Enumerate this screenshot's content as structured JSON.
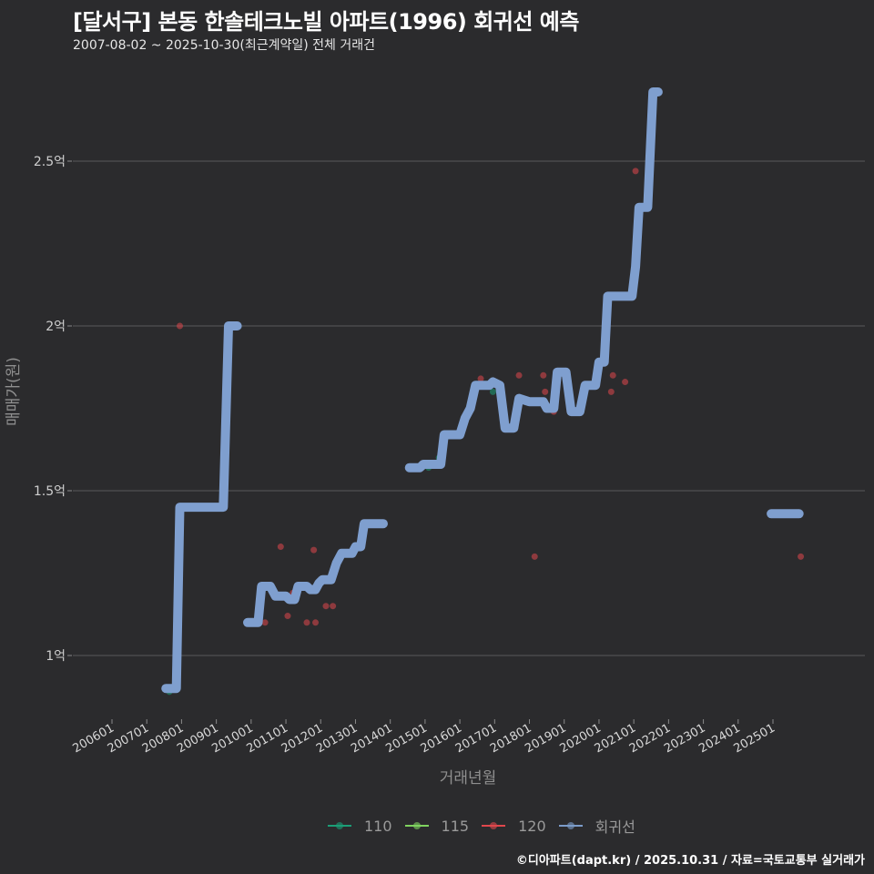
{
  "header": {
    "title": "[달서구] 본동 한솔테크노빌 아파트(1996) 회귀선 예측",
    "subtitle": "2007-08-02 ~ 2025-10-30(최근계약일) 전체 거래건"
  },
  "footer": {
    "credit": "©디아파트(dapt.kr) / 2025.10.31 / 자료=국토교통부 실거래가"
  },
  "legend": {
    "items": [
      {
        "label": "110",
        "color": "#1b9e77"
      },
      {
        "label": "115",
        "color": "#7fd35f"
      },
      {
        "label": "120",
        "color": "#e0474c"
      },
      {
        "label": "회귀선",
        "color": "#7b9cc9"
      }
    ]
  },
  "colors": {
    "background": "#2b2b2d",
    "grid": "#5a5a5a",
    "regression": "#7f9fcf"
  },
  "chart_data": {
    "type": "scatter",
    "title": "[달서구] 본동 한솔테크노빌 아파트(1996) 회귀선 예측",
    "subtitle": "2007-08-02 ~ 2025-10-30(최근계약일) 전체 거래건",
    "xlabel": "거래년월",
    "ylabel": "매매가(원)",
    "x_ticks": [
      "200601",
      "200701",
      "200801",
      "200901",
      "201001",
      "201101",
      "201201",
      "201301",
      "201401",
      "201501",
      "201601",
      "201701",
      "201801",
      "201901",
      "202001",
      "202101",
      "202201",
      "202301",
      "202401",
      "202501"
    ],
    "y_ticks": [
      {
        "value": 100000000,
        "label": "1억"
      },
      {
        "value": 150000000,
        "label": "1.5억"
      },
      {
        "value": 200000000,
        "label": "2억"
      },
      {
        "value": 250000000,
        "label": "2.5억"
      }
    ],
    "ylim": [
      82000000,
      275000000
    ],
    "xlim": [
      2005.6,
      2026.6
    ],
    "grid": true,
    "legend_position": "bottom",
    "series": [
      {
        "name": "110",
        "color": "#1b9e77",
        "points": [
          [
            2007.65,
            89000000
          ],
          [
            2015.1,
            157000000
          ],
          [
            2015.4,
            160000000
          ],
          [
            2016.95,
            180000000
          ]
        ]
      },
      {
        "name": "115",
        "color": "#7fd35f",
        "points": []
      },
      {
        "name": "120",
        "color": "#e0474c",
        "points": [
          [
            2007.95,
            200000000
          ],
          [
            2010.4,
            110000000
          ],
          [
            2010.85,
            133000000
          ],
          [
            2011.05,
            112000000
          ],
          [
            2011.2,
            119000000
          ],
          [
            2011.6,
            110000000
          ],
          [
            2011.8,
            132000000
          ],
          [
            2011.85,
            110000000
          ],
          [
            2012.15,
            115000000
          ],
          [
            2012.35,
            115000000
          ],
          [
            2016.6,
            184000000
          ],
          [
            2017.7,
            185000000
          ],
          [
            2018.15,
            130000000
          ],
          [
            2018.4,
            185000000
          ],
          [
            2018.45,
            180000000
          ],
          [
            2018.7,
            174000000
          ],
          [
            2020.35,
            180000000
          ],
          [
            2020.4,
            185000000
          ],
          [
            2020.75,
            183000000
          ],
          [
            2021.05,
            247000000
          ],
          [
            2025.8,
            130000000
          ]
        ]
      },
      {
        "name": "회귀선",
        "color": "#7f9fcf",
        "segments": [
          [
            [
              2007.55,
              90000000
            ],
            [
              2007.85,
              90000000
            ],
            [
              2007.95,
              145000000
            ],
            [
              2009.2,
              145000000
            ],
            [
              2009.35,
              200000000
            ],
            [
              2009.6,
              200000000
            ]
          ],
          [
            [
              2009.9,
              110000000
            ],
            [
              2010.2,
              110000000
            ],
            [
              2010.3,
              121000000
            ],
            [
              2010.55,
              121000000
            ],
            [
              2010.7,
              118000000
            ],
            [
              2011.0,
              118000000
            ],
            [
              2011.1,
              117000000
            ],
            [
              2011.25,
              117000000
            ],
            [
              2011.35,
              121000000
            ],
            [
              2011.6,
              121000000
            ],
            [
              2011.7,
              120000000
            ],
            [
              2011.85,
              120000000
            ],
            [
              2011.95,
              122000000
            ],
            [
              2012.05,
              123000000
            ],
            [
              2012.3,
              123000000
            ],
            [
              2012.45,
              128000000
            ],
            [
              2012.6,
              131000000
            ],
            [
              2012.9,
              131000000
            ],
            [
              2013.0,
              133000000
            ],
            [
              2013.15,
              133000000
            ],
            [
              2013.25,
              140000000
            ],
            [
              2013.8,
              140000000
            ]
          ],
          [
            [
              2014.55,
              157000000
            ],
            [
              2014.85,
              157000000
            ],
            [
              2014.95,
              158000000
            ],
            [
              2015.45,
              158000000
            ],
            [
              2015.55,
              167000000
            ],
            [
              2016.0,
              167000000
            ],
            [
              2016.15,
              172000000
            ],
            [
              2016.3,
              175000000
            ],
            [
              2016.45,
              182000000
            ],
            [
              2016.85,
              182000000
            ],
            [
              2016.95,
              183000000
            ],
            [
              2017.15,
              182000000
            ],
            [
              2017.3,
              169000000
            ],
            [
              2017.55,
              169000000
            ],
            [
              2017.7,
              178000000
            ],
            [
              2018.0,
              177000000
            ],
            [
              2018.4,
              177000000
            ],
            [
              2018.5,
              175000000
            ],
            [
              2018.7,
              175000000
            ],
            [
              2018.8,
              186000000
            ],
            [
              2019.05,
              186000000
            ],
            [
              2019.2,
              174000000
            ],
            [
              2019.45,
              174000000
            ],
            [
              2019.6,
              182000000
            ],
            [
              2019.9,
              182000000
            ],
            [
              2020.0,
              189000000
            ],
            [
              2020.15,
              189000000
            ],
            [
              2020.25,
              209000000
            ],
            [
              2020.95,
              209000000
            ],
            [
              2021.05,
              218000000
            ],
            [
              2021.15,
              236000000
            ],
            [
              2021.4,
              236000000
            ],
            [
              2021.55,
              271000000
            ],
            [
              2021.7,
              271000000
            ]
          ],
          [
            [
              2024.95,
              143000000
            ],
            [
              2025.75,
              143000000
            ]
          ]
        ]
      }
    ]
  },
  "axes": {
    "x_title": "거래년월",
    "y_title": "매매가(원)"
  }
}
